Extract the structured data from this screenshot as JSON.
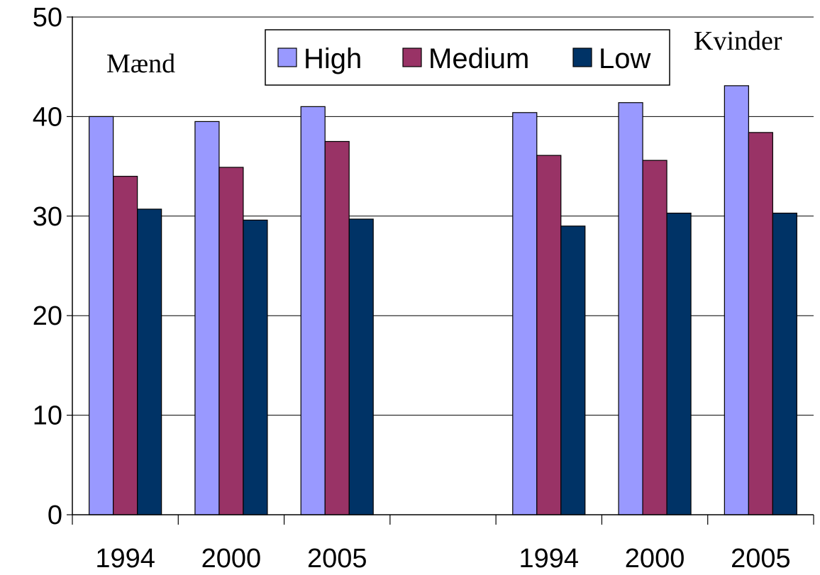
{
  "chart_data": {
    "type": "bar",
    "categories": [
      "1994",
      "2000",
      "2005",
      "",
      "1994",
      "2000",
      "2005"
    ],
    "series": [
      {
        "name": "High",
        "color": "#9999FF",
        "values": [
          40.0,
          39.5,
          41.0,
          null,
          40.4,
          41.4,
          43.1
        ]
      },
      {
        "name": "Medium",
        "color": "#993366",
        "values": [
          34.0,
          34.9,
          37.5,
          null,
          36.1,
          35.6,
          38.4
        ]
      },
      {
        "name": "Low",
        "color": "#003366",
        "values": [
          30.7,
          29.6,
          29.7,
          null,
          29.0,
          30.3,
          30.3
        ]
      }
    ],
    "group_labels": [
      "Mænd",
      "Kvinder"
    ],
    "ylim": [
      0,
      50
    ],
    "yticks": [
      "0",
      "10",
      "20",
      "30",
      "40",
      "50"
    ],
    "grid": true,
    "legend": "top-center"
  }
}
